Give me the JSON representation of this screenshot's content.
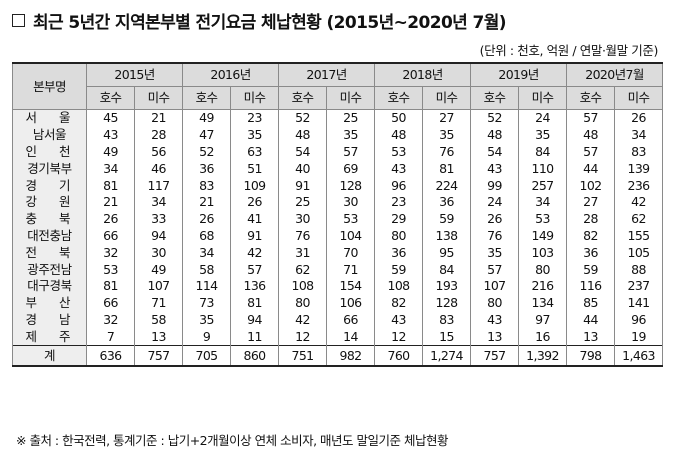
{
  "title": "최근 5년간 지역본부별 전기요금 체납현황 (2015년~2020년 7월)",
  "unit_note": "(단위 : 천호, 억원 / 연말·월말 기준)",
  "table": {
    "region_header": "본부명",
    "years": [
      "2015년",
      "2016년",
      "2017년",
      "2018년",
      "2019년",
      "2020년7월"
    ],
    "sub_headers": [
      "호수",
      "미수"
    ],
    "rows": [
      {
        "region": "서 울",
        "values": [
          "45",
          "21",
          "49",
          "23",
          "52",
          "25",
          "50",
          "27",
          "52",
          "24",
          "57",
          "26"
        ]
      },
      {
        "region": "남서울",
        "values": [
          "43",
          "28",
          "47",
          "35",
          "48",
          "35",
          "48",
          "35",
          "48",
          "35",
          "48",
          "34"
        ]
      },
      {
        "region": "인 천",
        "values": [
          "49",
          "56",
          "52",
          "63",
          "54",
          "57",
          "53",
          "76",
          "54",
          "84",
          "57",
          "83"
        ]
      },
      {
        "region": "경기북부",
        "values": [
          "34",
          "46",
          "36",
          "51",
          "40",
          "69",
          "43",
          "81",
          "43",
          "110",
          "44",
          "139"
        ]
      },
      {
        "region": "경 기",
        "values": [
          "81",
          "117",
          "83",
          "109",
          "91",
          "128",
          "96",
          "224",
          "99",
          "257",
          "102",
          "236"
        ]
      },
      {
        "region": "강 원",
        "values": [
          "21",
          "34",
          "21",
          "26",
          "25",
          "30",
          "23",
          "36",
          "24",
          "34",
          "27",
          "42"
        ]
      },
      {
        "region": "충 북",
        "values": [
          "26",
          "33",
          "26",
          "41",
          "30",
          "53",
          "29",
          "59",
          "26",
          "53",
          "28",
          "62"
        ]
      },
      {
        "region": "대전충남",
        "values": [
          "66",
          "94",
          "68",
          "91",
          "76",
          "104",
          "80",
          "138",
          "76",
          "149",
          "82",
          "155"
        ]
      },
      {
        "region": "전 북",
        "values": [
          "32",
          "30",
          "34",
          "42",
          "31",
          "70",
          "36",
          "95",
          "35",
          "103",
          "36",
          "105"
        ]
      },
      {
        "region": "광주전남",
        "values": [
          "53",
          "49",
          "58",
          "57",
          "62",
          "71",
          "59",
          "84",
          "57",
          "80",
          "59",
          "88"
        ]
      },
      {
        "region": "대구경북",
        "values": [
          "81",
          "107",
          "114",
          "136",
          "108",
          "154",
          "108",
          "193",
          "107",
          "216",
          "116",
          "237"
        ]
      },
      {
        "region": "부 산",
        "values": [
          "66",
          "71",
          "73",
          "81",
          "80",
          "106",
          "82",
          "128",
          "80",
          "134",
          "85",
          "141"
        ]
      },
      {
        "region": "경 남",
        "values": [
          "32",
          "58",
          "35",
          "94",
          "42",
          "66",
          "43",
          "83",
          "43",
          "97",
          "44",
          "96"
        ]
      },
      {
        "region": "제 주",
        "values": [
          "7",
          "13",
          "9",
          "11",
          "12",
          "14",
          "12",
          "15",
          "13",
          "16",
          "13",
          "19"
        ]
      }
    ],
    "total": {
      "region": "계",
      "values": [
        "636",
        "757",
        "705",
        "860",
        "751",
        "982",
        "760",
        "1,274",
        "757",
        "1,392",
        "798",
        "1,463"
      ]
    }
  },
  "footnote": "※ 출처 : 한국전력, 통계기준 : 납기+2개월이상 연체 소비자, 매년도 말일기준 체납현황"
}
